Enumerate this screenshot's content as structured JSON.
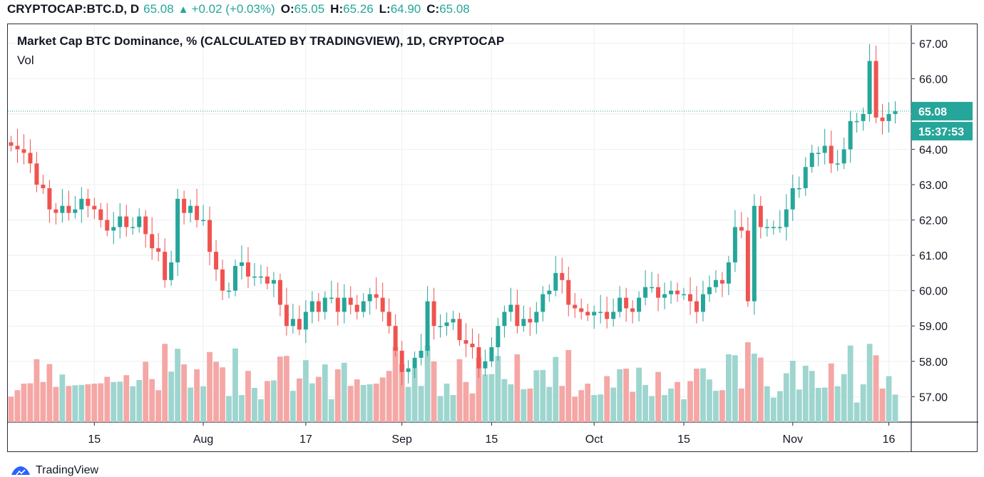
{
  "header": {
    "symbol": "CRYPTOCAP:BTC.D, D",
    "last": "65.08",
    "arrow": "▲",
    "change": "+0.02 (+0.03%)",
    "o_label": "O:",
    "o_value": "65.05",
    "h_label": "H:",
    "h_value": "65.26",
    "l_label": "L:",
    "l_value": "64.90",
    "c_label": "C:",
    "c_value": "65.08"
  },
  "chart_title": "Market Cap BTC Dominance, % (CALCULATED BY TRADINGVIEW), 1D, CRYPTOCAP",
  "volume_label": "Vol",
  "price_badge": "65.08",
  "countdown_badge": "15:37:53",
  "footer_brand": "TradingView",
  "colors": {
    "up": "#26a69a",
    "down": "#ef5350",
    "up_vol": "#9ed5cf",
    "down_vol": "#f4a7a5",
    "grid": "#eceff2",
    "badge": "#26a69a"
  },
  "chart_data": {
    "type": "candlestick",
    "title": "Market Cap BTC Dominance, % (CALCULATED BY TRADINGVIEW), 1D, CRYPTOCAP",
    "y_ticks": [
      "67.00",
      "66.00",
      "65.00",
      "64.00",
      "63.00",
      "62.00",
      "61.00",
      "60.00",
      "59.00",
      "58.00",
      "57.00"
    ],
    "ylim": [
      56.28,
      67.52
    ],
    "x_ticks": [
      {
        "label": "15",
        "index": 13
      },
      {
        "label": "Aug",
        "index": 30
      },
      {
        "label": "17",
        "index": 46
      },
      {
        "label": "Sep",
        "index": 61
      },
      {
        "label": "15",
        "index": 75
      },
      {
        "label": "Oct",
        "index": 91
      },
      {
        "label": "15",
        "index": 105
      },
      {
        "label": "Nov",
        "index": 122
      },
      {
        "label": "16",
        "index": 137
      }
    ],
    "x_range": [
      -0.5,
      140.5
    ],
    "last_price": 65.08,
    "closes": [
      64.1,
      64.0,
      63.9,
      63.6,
      63.0,
      62.9,
      62.3,
      62.2,
      62.4,
      62.2,
      62.3,
      62.6,
      62.4,
      62.3,
      62.0,
      61.7,
      61.8,
      62.1,
      61.8,
      61.8,
      62.1,
      61.6,
      61.2,
      61.1,
      60.3,
      60.8,
      62.6,
      62.2,
      62.4,
      62.0,
      62.0,
      61.1,
      60.6,
      60.0,
      60.0,
      60.7,
      60.8,
      60.4,
      60.4,
      60.4,
      60.2,
      60.3,
      59.6,
      59.0,
      59.2,
      58.9,
      59.4,
      59.7,
      59.4,
      59.8,
      59.8,
      59.4,
      59.8,
      59.6,
      59.4,
      59.7,
      59.9,
      59.8,
      59.4,
      59.0,
      58.3,
      57.7,
      57.8,
      58.1,
      58.3,
      59.7,
      59.0,
      59.0,
      59.1,
      59.2,
      58.6,
      58.5,
      58.4,
      57.8,
      58.0,
      58.4,
      59.0,
      59.4,
      59.6,
      59.0,
      59.2,
      59.1,
      59.4,
      59.9,
      60.0,
      60.5,
      60.3,
      59.6,
      59.5,
      59.4,
      59.3,
      59.4,
      59.4,
      59.2,
      59.4,
      59.8,
      59.5,
      59.4,
      59.8,
      60.1,
      60.1,
      59.8,
      59.9,
      60.0,
      59.9,
      59.9,
      59.7,
      59.4,
      59.9,
      60.1,
      60.3,
      60.2,
      60.8,
      61.8,
      61.7,
      59.7,
      62.4,
      61.8,
      61.8,
      61.8,
      61.8,
      62.3,
      62.9,
      62.9,
      63.5,
      63.9,
      63.9,
      64.1,
      63.6,
      63.6,
      64.0,
      64.8,
      64.8,
      65.0,
      66.5,
      64.9,
      64.8,
      65.0,
      65.08
    ]
  }
}
